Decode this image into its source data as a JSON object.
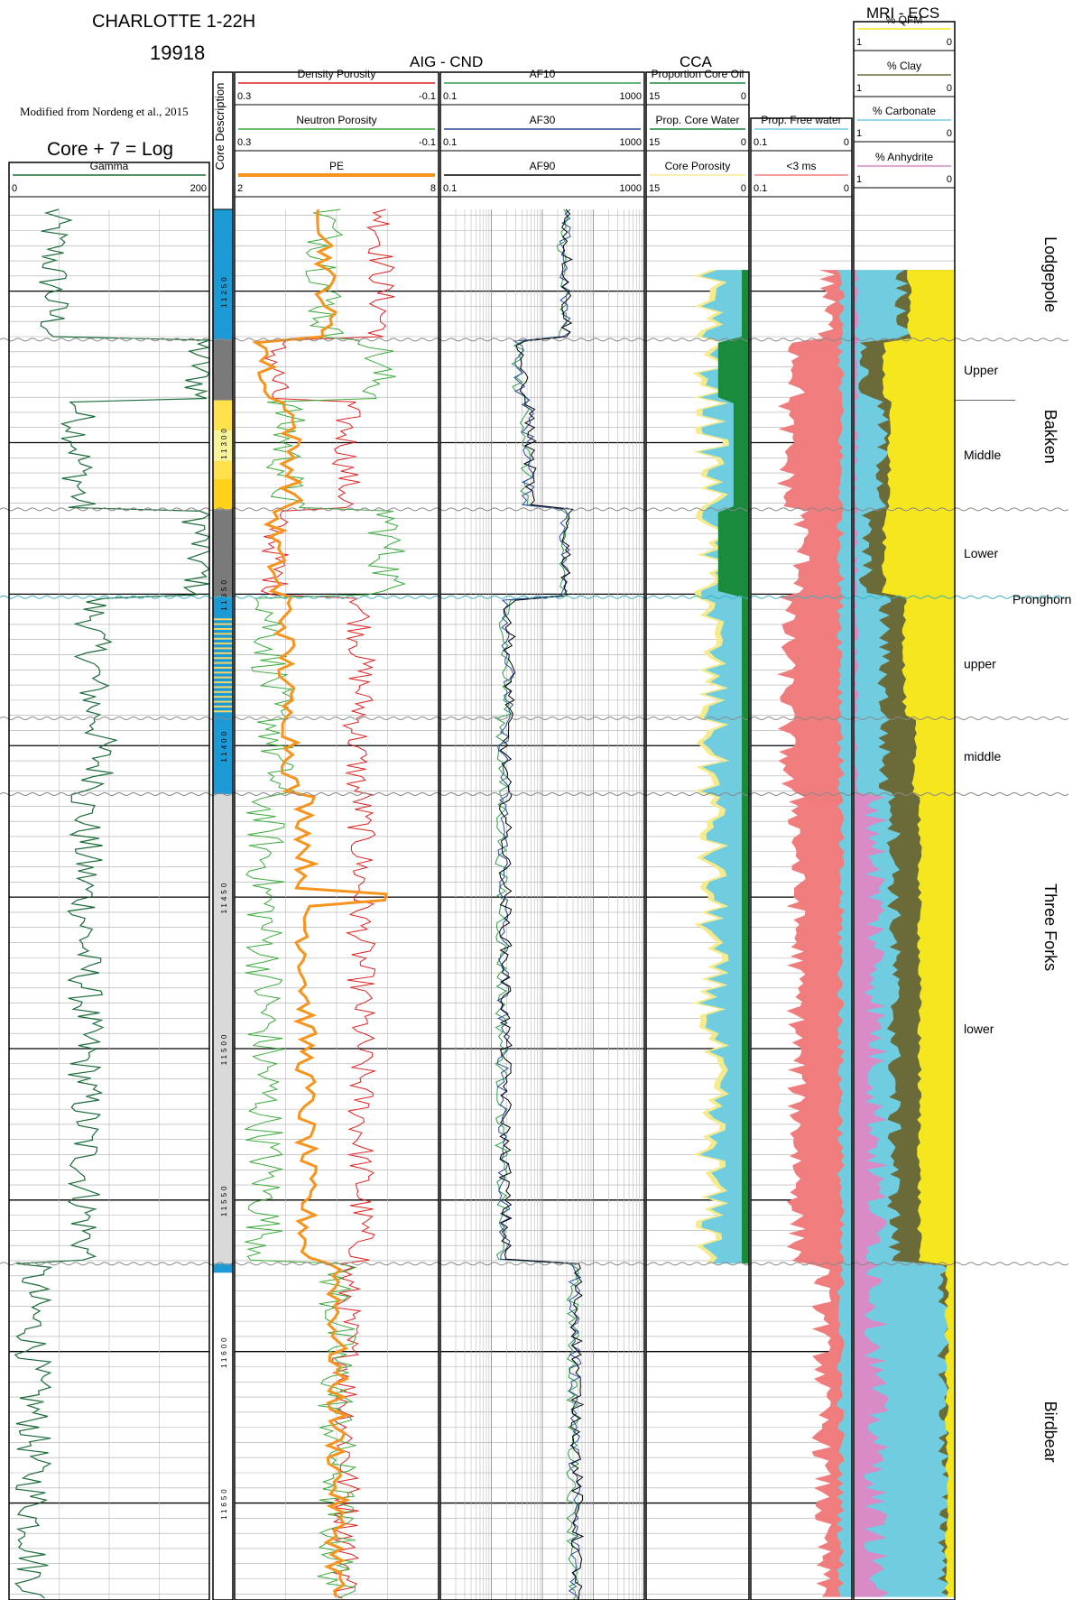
{
  "chart_data": {
    "type": "line",
    "well_name": "CHARLOTTE  1-22H",
    "well_number": "19918",
    "credit": "Modified from Nordeng et al., 2015",
    "core_shift_label": "Core + 7 = Log",
    "group_titles": {
      "resistivity": "AIG - CND",
      "cca": "CCA",
      "mri_ecs": "MRI - ECS"
    },
    "core_column_title": "Core Description",
    "depth_ticks": [
      11250,
      11300,
      11350,
      11400,
      11450,
      11500,
      11550,
      11600,
      11650
    ],
    "depth_range": [
      11223,
      11682
    ],
    "tracks": [
      {
        "id": "gamma",
        "curves": [
          {
            "name": "Gamma",
            "scale": [
              "0",
              "200"
            ],
            "color": "#1a6b38"
          }
        ]
      },
      {
        "id": "porosity",
        "curves": [
          {
            "name": "Density Porosity",
            "scale": [
              "0.3",
              "-0.1"
            ],
            "color": "#e02020"
          },
          {
            "name": "Neutron Porosity",
            "scale": [
              "0.3",
              "-0.1"
            ],
            "color": "#3aaa3a"
          },
          {
            "name": "PE",
            "scale": [
              "2",
              "8"
            ],
            "color": "#f7941d"
          }
        ]
      },
      {
        "id": "resistivity",
        "log_scale": true,
        "curves": [
          {
            "name": "AF10",
            "scale": [
              "0.1",
              "1000"
            ],
            "color": "#2e9e4a"
          },
          {
            "name": "AF30",
            "scale": [
              "0.1",
              "1000"
            ],
            "color": "#2b4a9e"
          },
          {
            "name": "AF90",
            "scale": [
              "0.1",
              "1000"
            ],
            "color": "#000000"
          }
        ]
      },
      {
        "id": "cca",
        "curves": [
          {
            "name": "Proportion Core Oil",
            "scale": [
              "15",
              "0"
            ],
            "color": "#1a8a3c"
          },
          {
            "name": "Prop. Core Water",
            "scale": [
              "15",
              "0"
            ],
            "color": "#1a8a3c"
          },
          {
            "name": "Core Porosity",
            "scale": [
              "15",
              "0"
            ],
            "color": "#f5ea8c"
          }
        ]
      },
      {
        "id": "mri",
        "curves": [
          {
            "name": "Prop. Free water",
            "scale": [
              "0.1",
              "0"
            ],
            "color": "#70cde0"
          },
          {
            "name": "<3 ms",
            "scale": [
              "0.1",
              "0"
            ],
            "color": "#f07d7d"
          }
        ]
      },
      {
        "id": "ecs",
        "curves": [
          {
            "name": "% QFM",
            "scale": [
              "1",
              "0"
            ],
            "color": "#f5e61d"
          },
          {
            "name": "% Clay",
            "scale": [
              "1",
              "0"
            ],
            "color": "#6b6b3a"
          },
          {
            "name": "% Carbonate",
            "scale": [
              "1",
              "0"
            ],
            "color": "#70cde0"
          },
          {
            "name": "% Anhydrite",
            "scale": [
              "1",
              "0"
            ],
            "color": "#d88bc4"
          }
        ]
      }
    ],
    "formations": [
      {
        "name": "Lodgepole",
        "top": 11223,
        "base": 11266
      },
      {
        "name": "Bakken",
        "top": 11266,
        "base": 11355,
        "members": [
          {
            "name": "Upper",
            "top": 11266,
            "base": 11286
          },
          {
            "name": "Middle",
            "top": 11286,
            "base": 11322
          },
          {
            "name": "Lower",
            "top": 11322,
            "base": 11351
          },
          {
            "name": "Pronghorn",
            "top": 11351,
            "base": 11355
          }
        ]
      },
      {
        "name": "Three Forks",
        "top": 11355,
        "base": 11571,
        "members": [
          {
            "name": "upper",
            "top": 11355,
            "base": 11391
          },
          {
            "name": "middle",
            "top": 11391,
            "base": 11416
          },
          {
            "name": "lower",
            "top": 11416,
            "base": 11571
          }
        ]
      },
      {
        "name": "Birdbear",
        "top": 11571,
        "base": 11682
      }
    ]
  }
}
